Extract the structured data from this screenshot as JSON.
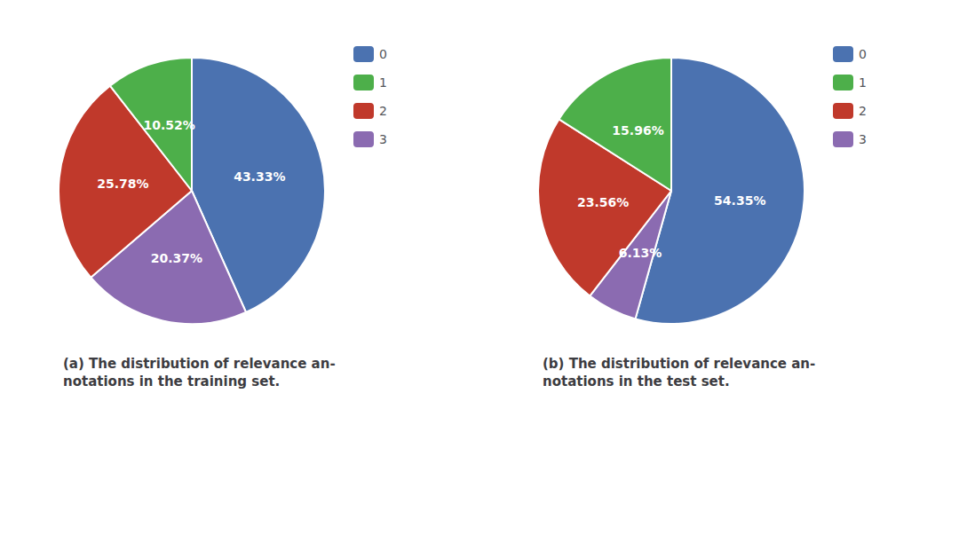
{
  "chart_data": [
    {
      "type": "pie",
      "title": "(a) The distribution of relevance an-\nnotations in the training set.",
      "categories": [
        "0",
        "3",
        "2",
        "1"
      ],
      "values": [
        43.33,
        20.37,
        25.78,
        10.52
      ],
      "value_labels": [
        "43.33%",
        "20.37%",
        "25.78%",
        "10.52%"
      ],
      "colors": [
        "#4B72B0",
        "#8B6BB1",
        "#C0392B",
        "#4DAF4A"
      ],
      "data_labels": true,
      "legend": "upper right"
    },
    {
      "type": "pie",
      "title": "(b) The distribution of relevance an-\nnotations in the test set.",
      "categories": [
        "0",
        "3",
        "2",
        "1"
      ],
      "values": [
        54.35,
        6.13,
        23.56,
        15.96
      ],
      "value_labels": [
        "54.35%",
        "6.13%",
        "23.56%",
        "15.96%"
      ],
      "colors": [
        "#4B72B0",
        "#8B6BB1",
        "#C0392B",
        "#4DAF4A"
      ],
      "data_labels": true,
      "legend": "upper right"
    }
  ]
}
